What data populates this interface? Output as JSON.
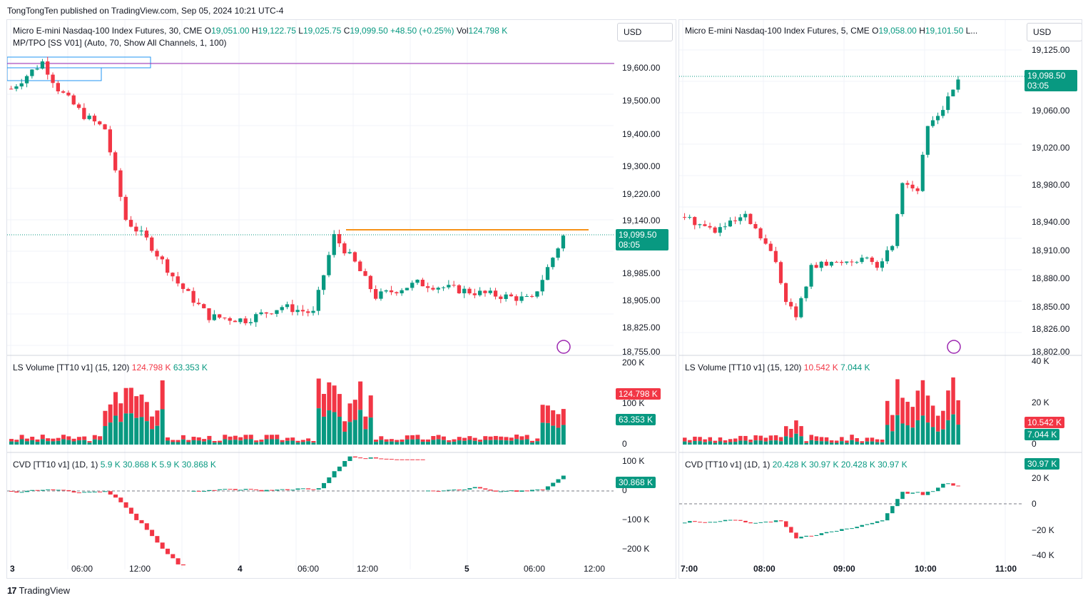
{
  "header": {
    "published": "TongTongTen published on TradingView.com, Sep 05, 2024 10:21 UTC-4"
  },
  "footer": {
    "brand": "TradingView",
    "mark": "17"
  },
  "colors": {
    "up": "#089981",
    "down": "#f23645",
    "poc_line": "#f7931a",
    "value_line": "#9c27b0",
    "box": "#2196f3"
  },
  "left": {
    "currency": "USD",
    "legend": {
      "symbol": "Micro E-mini Nasdaq-100 Index Futures, 30, CME",
      "o_label": "O",
      "o": "19,051.00",
      "h_label": "H",
      "h": "19,122.75",
      "l_label": "L",
      "l": "19,025.75",
      "c_label": "C",
      "c": "19,099.50",
      "chg": "+48.50 (+0.25%)",
      "vol_label": "Vol",
      "vol": "124.798 K",
      "indicator": "MP/TPO [SS V01] (Auto, 70, Show All Channels, 1, 100)"
    },
    "price_ticks": [
      "19,600.00",
      "19,500.00",
      "19,400.00",
      "19,300.00",
      "19,220.00",
      "19,140.00",
      "18,985.00",
      "18,905.00",
      "18,825.00",
      "18,755.00"
    ],
    "last_price": "19,099.50",
    "countdown": "08:05",
    "volume": {
      "label": "LS Volume [TT10 v1] (15, 120)",
      "v1": "124.798 K",
      "v2": "63.353 K",
      "ticks": [
        "200 K",
        "100 K",
        "0"
      ],
      "tag_red": "124.798 K",
      "tag_green": "63.353 K"
    },
    "cvd": {
      "label": "CVD [TT10 v1] (1D, 1)",
      "v1": "5.9 K",
      "v2": "30.868 K",
      "v3": "5.9 K",
      "v4": "30.868 K",
      "ticks": [
        "100 K",
        "0",
        "−100 K",
        "−200 K"
      ],
      "tag": "30.868 K"
    },
    "time_ticks": [
      "3",
      "06:00",
      "12:00",
      "4",
      "06:00",
      "12:00",
      "5",
      "06:00",
      "12:00"
    ]
  },
  "right": {
    "currency": "USD",
    "legend": {
      "symbol": "Micro E-mini Nasdaq-100 Index Futures, 5, CME",
      "o_label": "O",
      "o": "19,058.00",
      "h_label": "H",
      "h": "19,101.50",
      "more": "L..."
    },
    "price_ticks": [
      "19,125.00",
      "19,060.00",
      "19,020.00",
      "18,980.00",
      "18,940.00",
      "18,910.00",
      "18,880.00",
      "18,850.00",
      "18,826.00",
      "18,802.00"
    ],
    "last_price": "19,098.50",
    "countdown": "03:05",
    "volume": {
      "label": "LS Volume [TT10 v1] (15, 120)",
      "v1": "10.542 K",
      "v2": "7.044 K",
      "ticks": [
        "40 K",
        "20 K",
        "0"
      ],
      "tag_red": "10.542 K",
      "tag_green": "7.044 K"
    },
    "cvd": {
      "label": "CVD [TT10 v1] (1D, 1)",
      "v1": "20.428 K",
      "v2": "30.97 K",
      "v3": "20.428 K",
      "v4": "30.97 K",
      "ticks": [
        "20 K",
        "0",
        "−20 K",
        "−40 K"
      ],
      "tag": "30.97 K"
    },
    "time_ticks": [
      "7:00",
      "08:00",
      "09:00",
      "10:00",
      "11:00"
    ]
  }
}
